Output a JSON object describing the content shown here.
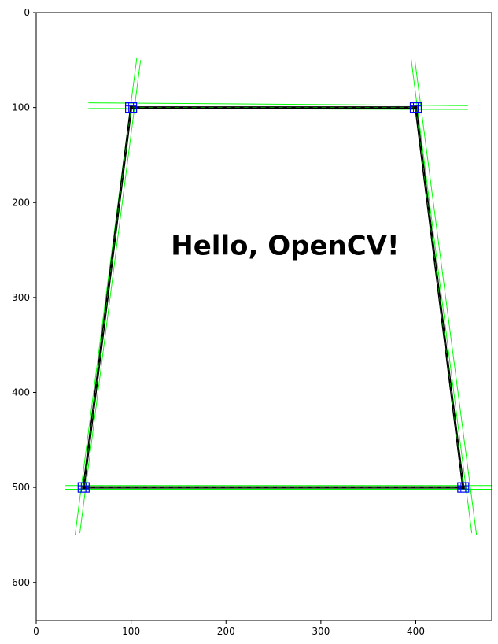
{
  "chart_data": {
    "type": "image",
    "title": "",
    "xlabel": "",
    "ylabel": "",
    "xlim": [
      0,
      480
    ],
    "ylim": [
      640,
      0
    ],
    "y_axis_inverted": true,
    "grid": false,
    "xticks": [
      0,
      100,
      200,
      300,
      400
    ],
    "yticks": [
      0,
      100,
      200,
      300,
      400,
      500,
      600
    ],
    "image_text": "Hello, OpenCV!",
    "image_text_anchor": [
      142,
      255
    ],
    "quad": [
      [
        100,
        100
      ],
      [
        400,
        100
      ],
      [
        450,
        500
      ],
      [
        50,
        500
      ]
    ],
    "corner_markers": [
      [
        100,
        100
      ],
      [
        400,
        100
      ],
      [
        450,
        500
      ],
      [
        50,
        500
      ]
    ],
    "detected_lines": [
      {
        "p1": [
          55,
          95
        ],
        "p2": [
          455,
          98
        ]
      },
      {
        "p1": [
          55,
          101
        ],
        "p2": [
          455,
          102
        ]
      },
      {
        "p1": [
          30,
          498
        ],
        "p2": [
          480,
          498
        ]
      },
      {
        "p1": [
          30,
          502
        ],
        "p2": [
          480,
          502
        ]
      },
      {
        "p1": [
          106,
          48
        ],
        "p2": [
          41,
          550
        ]
      },
      {
        "p1": [
          110,
          50
        ],
        "p2": [
          46,
          548
        ]
      },
      {
        "p1": [
          395,
          48
        ],
        "p2": [
          459,
          548
        ]
      },
      {
        "p1": [
          399,
          50
        ],
        "p2": [
          464,
          550
        ]
      }
    ],
    "colors": {
      "background": "#ffffff",
      "quad_edge": "#000000",
      "edge_overlay": "#00aa00",
      "detected_line": "#00ff00",
      "corner_marker": "#0000ff"
    }
  }
}
